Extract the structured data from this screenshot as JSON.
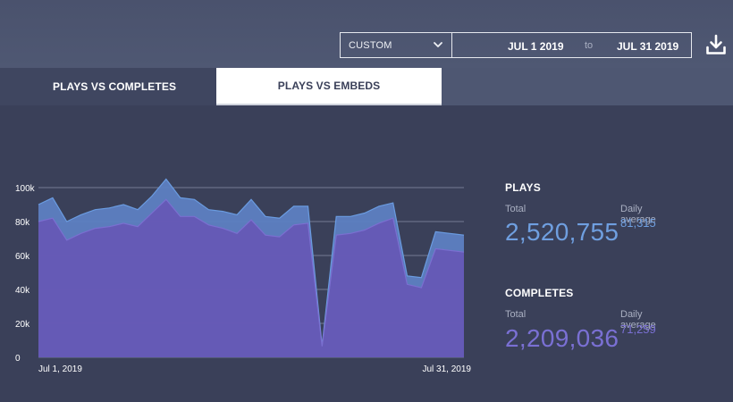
{
  "colors": {
    "background": "#3a4059",
    "plays": "#5b8fd6",
    "completes": "#6a5fc8",
    "white": "#ffffff"
  },
  "toolbar": {
    "range_label": "CUSTOM",
    "range_icon": "chevron-down-icon",
    "date_from": "JUL 1 2019",
    "date_separator": "to",
    "date_to": "JUL 31 2019",
    "download_icon": "download-icon"
  },
  "tabs": [
    {
      "label": "PLAYS VS COMPLETES",
      "active": false
    },
    {
      "label": "PLAYS VS EMBEDS",
      "active": true
    }
  ],
  "stats": {
    "plays": {
      "title": "PLAYS",
      "total_label": "Total",
      "total": "2,520,755",
      "avg_label": "Daily average",
      "avg": "81,315"
    },
    "completes": {
      "title": "COMPLETES",
      "total_label": "Total",
      "total": "2,209,036",
      "avg_label": "Daily average",
      "avg": "71,259"
    }
  },
  "chart_data": {
    "type": "area",
    "x_start_label": "Jul 1, 2019",
    "x_end_label": "Jul 31, 2019",
    "ylim": [
      0,
      100000
    ],
    "yticks": [
      "0",
      "20k",
      "40k",
      "60k",
      "80k",
      "100k"
    ],
    "grid": true,
    "legend": "none",
    "x": [
      "Jul 1",
      "Jul 2",
      "Jul 3",
      "Jul 4",
      "Jul 5",
      "Jul 6",
      "Jul 7",
      "Jul 8",
      "Jul 9",
      "Jul 10",
      "Jul 11",
      "Jul 12",
      "Jul 13",
      "Jul 14",
      "Jul 15",
      "Jul 16",
      "Jul 17",
      "Jul 18",
      "Jul 19",
      "Jul 20",
      "Jul 21",
      "Jul 22",
      "Jul 23",
      "Jul 24",
      "Jul 25",
      "Jul 26",
      "Jul 27",
      "Jul 28",
      "Jul 29",
      "Jul 30",
      "Jul 31"
    ],
    "series": [
      {
        "name": "PLAYS",
        "values": [
          90000,
          94000,
          80000,
          84000,
          87000,
          88000,
          90000,
          87000,
          95000,
          105000,
          94000,
          93000,
          87000,
          86000,
          84000,
          93000,
          83000,
          82000,
          89000,
          89000,
          7000,
          83000,
          83000,
          85000,
          89000,
          91000,
          48000,
          47000,
          74000,
          73000,
          72000
        ]
      },
      {
        "name": "COMPLETES",
        "values": [
          80000,
          82000,
          69000,
          73000,
          76000,
          77000,
          79000,
          77000,
          85000,
          93000,
          83000,
          83000,
          78000,
          76000,
          73000,
          81000,
          72000,
          71000,
          78000,
          79000,
          6500,
          72000,
          73000,
          75000,
          79000,
          82000,
          43000,
          41000,
          64000,
          63000,
          62000
        ]
      }
    ]
  }
}
